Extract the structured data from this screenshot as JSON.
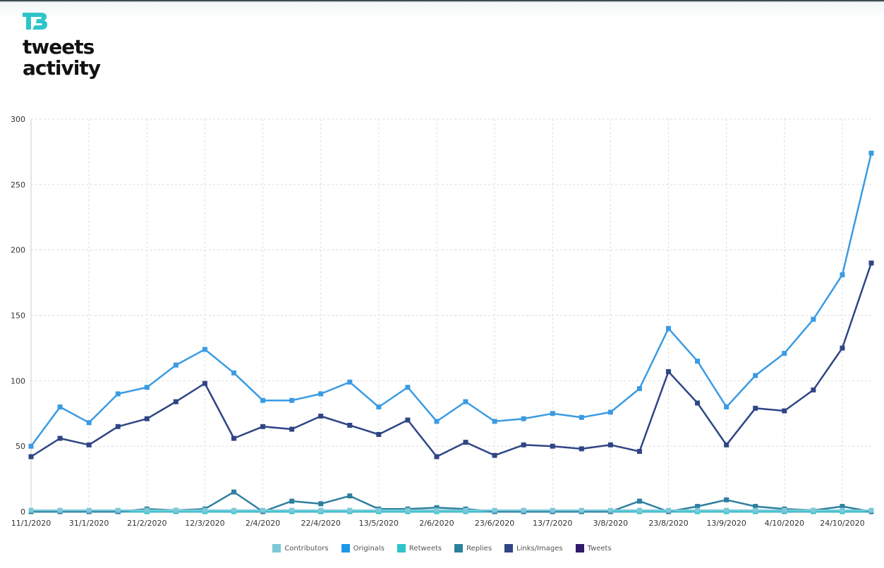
{
  "header": {
    "logo_icon": "tb-logo-icon",
    "title_line1": "tweets",
    "title_line2": "activity"
  },
  "colors": {
    "Contributors": "#7cc9d9",
    "Originals": "#1f97e8",
    "Retweets": "#2ec4c9",
    "Replies": "#2d7f9e",
    "Links/Images": "#2f4585",
    "Tweets": "#30196a",
    "originals_line": "#3a9be3",
    "grid": "#dddddd",
    "logo": "#2ec4c9"
  },
  "chart_data": {
    "type": "line",
    "title": "",
    "xlabel": "",
    "ylabel": "",
    "ylim": [
      0,
      300
    ],
    "yticks": [
      0,
      50,
      100,
      150,
      200,
      250,
      300
    ],
    "grid": true,
    "legend_position": "bottom",
    "x": [
      "11/1/2020",
      "21/1/2020",
      "31/1/2020",
      "10/2/2020",
      "21/2/2020",
      "1/3/2020",
      "12/3/2020",
      "22/3/2020",
      "2/4/2020",
      "12/4/2020",
      "22/4/2020",
      "3/5/2020",
      "13/5/2020",
      "23/5/2020",
      "2/6/2020",
      "13/6/2020",
      "23/6/2020",
      "3/7/2020",
      "13/7/2020",
      "24/7/2020",
      "3/8/2020",
      "13/8/2020",
      "23/8/2020",
      "3/9/2020",
      "13/9/2020",
      "23/9/2020",
      "4/10/2020",
      "14/10/2020",
      "24/10/2020",
      "3/11/2020"
    ],
    "xtick_labels": [
      "11/1/2020",
      "31/1/2020",
      "21/2/2020",
      "12/3/2020",
      "2/4/2020",
      "22/4/2020",
      "13/5/2020",
      "2/6/2020",
      "23/6/2020",
      "13/7/2020",
      "3/8/2020",
      "23/8/2020",
      "13/9/2020",
      "4/10/2020",
      "24/10/2020"
    ],
    "series": [
      {
        "name": "Contributors",
        "values": [
          1,
          1,
          1,
          1,
          1,
          1,
          1,
          1,
          1,
          1,
          1,
          1,
          1,
          1,
          1,
          1,
          1,
          1,
          1,
          1,
          1,
          1,
          1,
          1,
          1,
          1,
          1,
          1,
          1,
          1
        ]
      },
      {
        "name": "Originals",
        "values": [
          50,
          80,
          68,
          90,
          95,
          112,
          124,
          106,
          85,
          85,
          90,
          99,
          80,
          95,
          69,
          84,
          69,
          71,
          75,
          72,
          76,
          94,
          140,
          115,
          80,
          104,
          121,
          147,
          181,
          274
        ]
      },
      {
        "name": "Retweets",
        "values": [
          0,
          0,
          0,
          0,
          0,
          0,
          0,
          0,
          0,
          0,
          0,
          0,
          0,
          0,
          0,
          0,
          0,
          0,
          0,
          0,
          0,
          0,
          0,
          0,
          0,
          0,
          0,
          0,
          0,
          0
        ]
      },
      {
        "name": "Replies",
        "values": [
          0,
          0,
          0,
          0,
          2,
          1,
          2,
          15,
          0,
          8,
          6,
          12,
          2,
          2,
          3,
          2,
          0,
          0,
          0,
          0,
          0,
          8,
          0,
          4,
          9,
          4,
          2,
          1,
          4,
          0
        ]
      },
      {
        "name": "Links/Images",
        "values": [
          42,
          56,
          51,
          65,
          71,
          84,
          98,
          56,
          65,
          63,
          73,
          66,
          59,
          70,
          42,
          53,
          43,
          51,
          50,
          48,
          51,
          46,
          107,
          83,
          51,
          79,
          77,
          93,
          125,
          190
        ]
      },
      {
        "name": "Tweets",
        "values": [
          0,
          0,
          0,
          0,
          0,
          0,
          0,
          0,
          0,
          0,
          0,
          0,
          0,
          0,
          0,
          0,
          0,
          0,
          0,
          0,
          0,
          0,
          0,
          0,
          0,
          0,
          0,
          0,
          0,
          0
        ]
      }
    ]
  }
}
